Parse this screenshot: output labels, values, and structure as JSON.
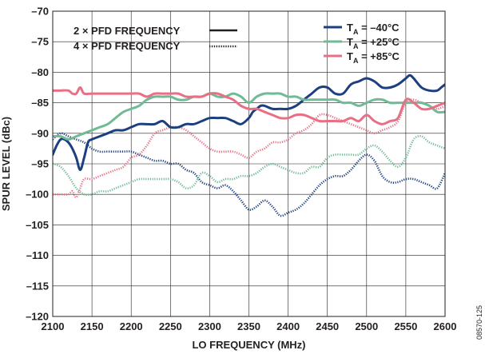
{
  "chart_data": {
    "type": "line",
    "xlabel": "LO FREQUENCY (MHz)",
    "ylabel": "SPUR LEVEL (dBc)",
    "xlim": [
      2100,
      2600
    ],
    "ylim": [
      -120,
      -70
    ],
    "x_ticks": [
      2100,
      2150,
      2200,
      2250,
      2300,
      2350,
      2400,
      2450,
      2500,
      2550,
      2600
    ],
    "x_tick_labels": [
      "2100",
      "2150",
      "2200",
      "2250",
      "2300",
      "2350",
      "2400",
      "2450",
      "2500",
      "2550",
      "2600"
    ],
    "y_ticks": [
      -70,
      -75,
      -80,
      -85,
      -90,
      -95,
      -100,
      -105,
      -110,
      -115,
      -120
    ],
    "y_tick_labels": [
      "–70",
      "–75",
      "–80",
      "–85",
      "–90",
      "–95",
      "–100",
      "–105",
      "–110",
      "–115",
      "–120"
    ],
    "grid": true,
    "figure_id": "08570-125",
    "style_legend": {
      "placement": "top-left",
      "entries": [
        {
          "label": "2 × PFD FREQUENCY",
          "style": "solid"
        },
        {
          "label": "4 × PFD FREQUENCY",
          "style": "dotted"
        }
      ]
    },
    "temp_legend": {
      "placement": "top-right",
      "entries": [
        {
          "label": "T_A = –40°C",
          "sub_main": "T",
          "sub": "A",
          "rest": " = –40°C",
          "color": "#1c3f7f"
        },
        {
          "label": "T_A = +25°C",
          "sub_main": "T",
          "sub": "A",
          "rest": " = +25°C",
          "color": "#6fbb95"
        },
        {
          "label": "T_A = +85°C",
          "sub_main": "T",
          "sub": "A",
          "rest": " = +85°C",
          "color": "#e86f84"
        }
      ]
    },
    "series": [
      {
        "temperature": "–40°C",
        "style": "solid",
        "color": "#1c3f7f",
        "x": [
          2100,
          2105,
          2110,
          2115,
          2120,
          2125,
          2130,
          2135,
          2140,
          2145,
          2150,
          2160,
          2170,
          2180,
          2190,
          2200,
          2210,
          2220,
          2230,
          2240,
          2250,
          2260,
          2270,
          2280,
          2290,
          2300,
          2310,
          2320,
          2330,
          2340,
          2350,
          2355,
          2360,
          2365,
          2370,
          2380,
          2390,
          2400,
          2410,
          2420,
          2430,
          2440,
          2450,
          2460,
          2470,
          2480,
          2490,
          2500,
          2510,
          2520,
          2530,
          2540,
          2550,
          2555,
          2560,
          2570,
          2580,
          2590,
          2595,
          2600
        ],
        "y": [
          -93.5,
          -92,
          -91,
          -91,
          -91.5,
          -92.5,
          -94,
          -96,
          -94,
          -91.5,
          -91,
          -90.5,
          -90,
          -89.5,
          -89.5,
          -89,
          -88.5,
          -88.5,
          -88.5,
          -88,
          -89,
          -89,
          -88.5,
          -88.5,
          -88,
          -87.5,
          -87.5,
          -87.5,
          -88,
          -88.5,
          -87.5,
          -86.5,
          -86,
          -85.5,
          -85.5,
          -86,
          -86,
          -86,
          -85.5,
          -84.5,
          -83.5,
          -82.5,
          -82.5,
          -83.5,
          -83.5,
          -82,
          -81.5,
          -81,
          -81.5,
          -82.5,
          -82.5,
          -82,
          -81,
          -80.5,
          -81,
          -82.5,
          -83,
          -83,
          -82.5,
          -82
        ]
      },
      {
        "temperature": "+25°C",
        "style": "solid",
        "color": "#6fbb95",
        "x": [
          2100,
          2110,
          2120,
          2130,
          2140,
          2150,
          2160,
          2170,
          2180,
          2190,
          2200,
          2210,
          2220,
          2230,
          2240,
          2250,
          2260,
          2270,
          2280,
          2290,
          2300,
          2310,
          2320,
          2330,
          2340,
          2350,
          2360,
          2370,
          2380,
          2390,
          2400,
          2410,
          2420,
          2430,
          2440,
          2450,
          2460,
          2470,
          2480,
          2490,
          2500,
          2510,
          2520,
          2530,
          2540,
          2550,
          2560,
          2570,
          2580,
          2590,
          2600
        ],
        "y": [
          -90.5,
          -90.5,
          -91,
          -90.5,
          -90,
          -89.5,
          -89,
          -88.5,
          -87.5,
          -86.5,
          -86,
          -85.5,
          -84.5,
          -84,
          -84,
          -84,
          -84.5,
          -84.5,
          -84,
          -84,
          -83.5,
          -84,
          -84,
          -83.5,
          -84,
          -85,
          -84,
          -83.5,
          -83.5,
          -83.5,
          -84,
          -84,
          -84.5,
          -84.5,
          -84.5,
          -84.5,
          -84.5,
          -85,
          -85,
          -85.5,
          -85,
          -84.5,
          -84.5,
          -85,
          -85,
          -85,
          -85,
          -85,
          -85.5,
          -86.5,
          -86.5
        ]
      },
      {
        "temperature": "+85°C",
        "style": "solid",
        "color": "#e86f84",
        "x": [
          2100,
          2110,
          2120,
          2125,
          2130,
          2135,
          2140,
          2150,
          2160,
          2170,
          2180,
          2190,
          2200,
          2210,
          2220,
          2230,
          2240,
          2250,
          2260,
          2270,
          2280,
          2290,
          2300,
          2310,
          2320,
          2330,
          2340,
          2350,
          2360,
          2370,
          2380,
          2390,
          2400,
          2410,
          2420,
          2430,
          2440,
          2450,
          2460,
          2470,
          2480,
          2490,
          2500,
          2510,
          2520,
          2530,
          2540,
          2550,
          2560,
          2570,
          2580,
          2590,
          2600
        ],
        "y": [
          -83,
          -83,
          -83,
          -83.5,
          -83.5,
          -82.5,
          -83.5,
          -83.5,
          -83.5,
          -83.5,
          -83.5,
          -83.5,
          -83.5,
          -83.5,
          -84,
          -83.5,
          -83.5,
          -83.5,
          -83.5,
          -84,
          -84,
          -84,
          -83.5,
          -83.5,
          -84,
          -84.5,
          -85.5,
          -86,
          -86,
          -86.5,
          -87,
          -87.5,
          -87.5,
          -87,
          -87,
          -87.5,
          -88,
          -88,
          -88,
          -88,
          -87.5,
          -88,
          -87,
          -88,
          -88.5,
          -88,
          -87.5,
          -84.5,
          -85,
          -86,
          -86,
          -85.5,
          -85
        ]
      },
      {
        "temperature": "–40°C",
        "style": "dotted",
        "color": "#1c3f7f",
        "x": [
          2100,
          2110,
          2120,
          2130,
          2140,
          2150,
          2160,
          2170,
          2180,
          2190,
          2200,
          2210,
          2220,
          2230,
          2240,
          2250,
          2260,
          2270,
          2280,
          2290,
          2300,
          2310,
          2320,
          2330,
          2340,
          2350,
          2360,
          2370,
          2380,
          2390,
          2400,
          2410,
          2420,
          2430,
          2440,
          2450,
          2460,
          2470,
          2480,
          2490,
          2500,
          2510,
          2520,
          2530,
          2540,
          2550,
          2560,
          2570,
          2580,
          2590,
          2600
        ],
        "y": [
          -91,
          -90,
          -90.5,
          -91,
          -91.5,
          -92.5,
          -93,
          -93,
          -93,
          -93,
          -93,
          -93.5,
          -94,
          -94.5,
          -94.5,
          -95,
          -95,
          -96,
          -96.5,
          -98,
          -98.5,
          -99,
          -98.5,
          -99.5,
          -101,
          -102.5,
          -102,
          -101,
          -102,
          -103.5,
          -103,
          -102.5,
          -101.5,
          -100,
          -98.5,
          -97.5,
          -97,
          -97,
          -96,
          -94.5,
          -93.5,
          -94.5,
          -97,
          -98,
          -98,
          -97.5,
          -97.5,
          -98,
          -98.5,
          -99,
          -96.5
        ]
      },
      {
        "temperature": "+25°C",
        "style": "dotted",
        "color": "#6fbb95",
        "x": [
          2100,
          2110,
          2120,
          2130,
          2140,
          2150,
          2160,
          2170,
          2180,
          2190,
          2200,
          2210,
          2220,
          2230,
          2240,
          2250,
          2260,
          2270,
          2280,
          2290,
          2300,
          2310,
          2320,
          2330,
          2340,
          2350,
          2360,
          2370,
          2380,
          2390,
          2400,
          2410,
          2420,
          2430,
          2440,
          2450,
          2460,
          2470,
          2480,
          2490,
          2500,
          2510,
          2520,
          2530,
          2540,
          2550,
          2560,
          2570,
          2580,
          2590,
          2600
        ],
        "y": [
          -95,
          -95.5,
          -97,
          -99,
          -100,
          -100,
          -99.5,
          -99.5,
          -99,
          -98.5,
          -98,
          -97.5,
          -97.5,
          -97.5,
          -97.5,
          -97.5,
          -98,
          -99,
          -98.5,
          -96.5,
          -97,
          -98,
          -97.5,
          -97.5,
          -97,
          -97,
          -96.5,
          -95.5,
          -95,
          -95.5,
          -96,
          -96.5,
          -96.5,
          -95.5,
          -95.5,
          -94,
          -93.5,
          -93.5,
          -93.5,
          -93.5,
          -92.5,
          -92,
          -93,
          -94.5,
          -95.5,
          -94,
          -91,
          -90.5,
          -91.5,
          -92,
          -92.5
        ]
      },
      {
        "temperature": "+85°C",
        "style": "dotted",
        "color": "#e86f84",
        "x": [
          2100,
          2110,
          2120,
          2125,
          2130,
          2135,
          2140,
          2150,
          2160,
          2170,
          2180,
          2190,
          2200,
          2210,
          2220,
          2230,
          2240,
          2250,
          2260,
          2270,
          2280,
          2290,
          2300,
          2310,
          2320,
          2330,
          2340,
          2350,
          2360,
          2370,
          2380,
          2390,
          2400,
          2410,
          2420,
          2430,
          2440,
          2450,
          2460,
          2470,
          2480,
          2490,
          2500,
          2510,
          2520,
          2530,
          2540,
          2550,
          2560,
          2570,
          2580,
          2590,
          2600
        ],
        "y": [
          -100,
          -100,
          -100,
          -99.5,
          -100.5,
          -99,
          -97.5,
          -97.5,
          -97,
          -96.5,
          -96,
          -95.5,
          -94,
          -93.5,
          -92,
          -90,
          -89.5,
          -89,
          -89,
          -89.5,
          -90.5,
          -91.5,
          -92.5,
          -93,
          -93,
          -93,
          -93.5,
          -94,
          -93,
          -92.5,
          -91.5,
          -91.5,
          -91,
          -90,
          -89.5,
          -88.5,
          -87,
          -87,
          -87.5,
          -88,
          -88.5,
          -89,
          -89.5,
          -90,
          -89.5,
          -89,
          -88,
          -85,
          -84.5,
          -85,
          -85.5,
          -86,
          -85.5
        ]
      }
    ]
  }
}
